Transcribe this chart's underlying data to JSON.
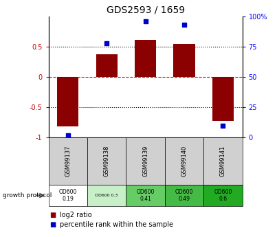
{
  "title": "GDS2593 / 1659",
  "samples": [
    "GSM99137",
    "GSM99138",
    "GSM99139",
    "GSM99140",
    "GSM99141"
  ],
  "log2_ratio": [
    -0.82,
    0.38,
    0.62,
    0.55,
    -0.73
  ],
  "percentile_rank": [
    2,
    78,
    96,
    93,
    10
  ],
  "left_ylim": [
    -1,
    1
  ],
  "right_ylim": [
    0,
    100
  ],
  "left_yticks": [
    -1,
    -0.5,
    0,
    0.5
  ],
  "right_yticks": [
    0,
    25,
    50,
    75,
    100
  ],
  "left_ytick_labels": [
    "-1",
    "-0.5",
    "0",
    "0.5"
  ],
  "right_ytick_labels": [
    "0",
    "25",
    "50",
    "75",
    "100%"
  ],
  "hline_dotted_black": [
    0.5,
    -0.5
  ],
  "bar_color": "#8B0000",
  "dot_color": "#0000CC",
  "bar_width": 0.55,
  "growth_protocol_label": "growth protocol",
  "protocol_cells": [
    "OD600\n0.19",
    "OD600 0.3",
    "OD600\n0.41",
    "OD600\n0.49",
    "OD600\n0.6"
  ],
  "protocol_bg_colors": [
    "#ffffff",
    "#c8f0c8",
    "#66cc66",
    "#44bb44",
    "#22aa22"
  ],
  "sample_bg_color": "#d0d0d0",
  "legend_log2_color": "#8B0000",
  "legend_pct_color": "#0000CC"
}
